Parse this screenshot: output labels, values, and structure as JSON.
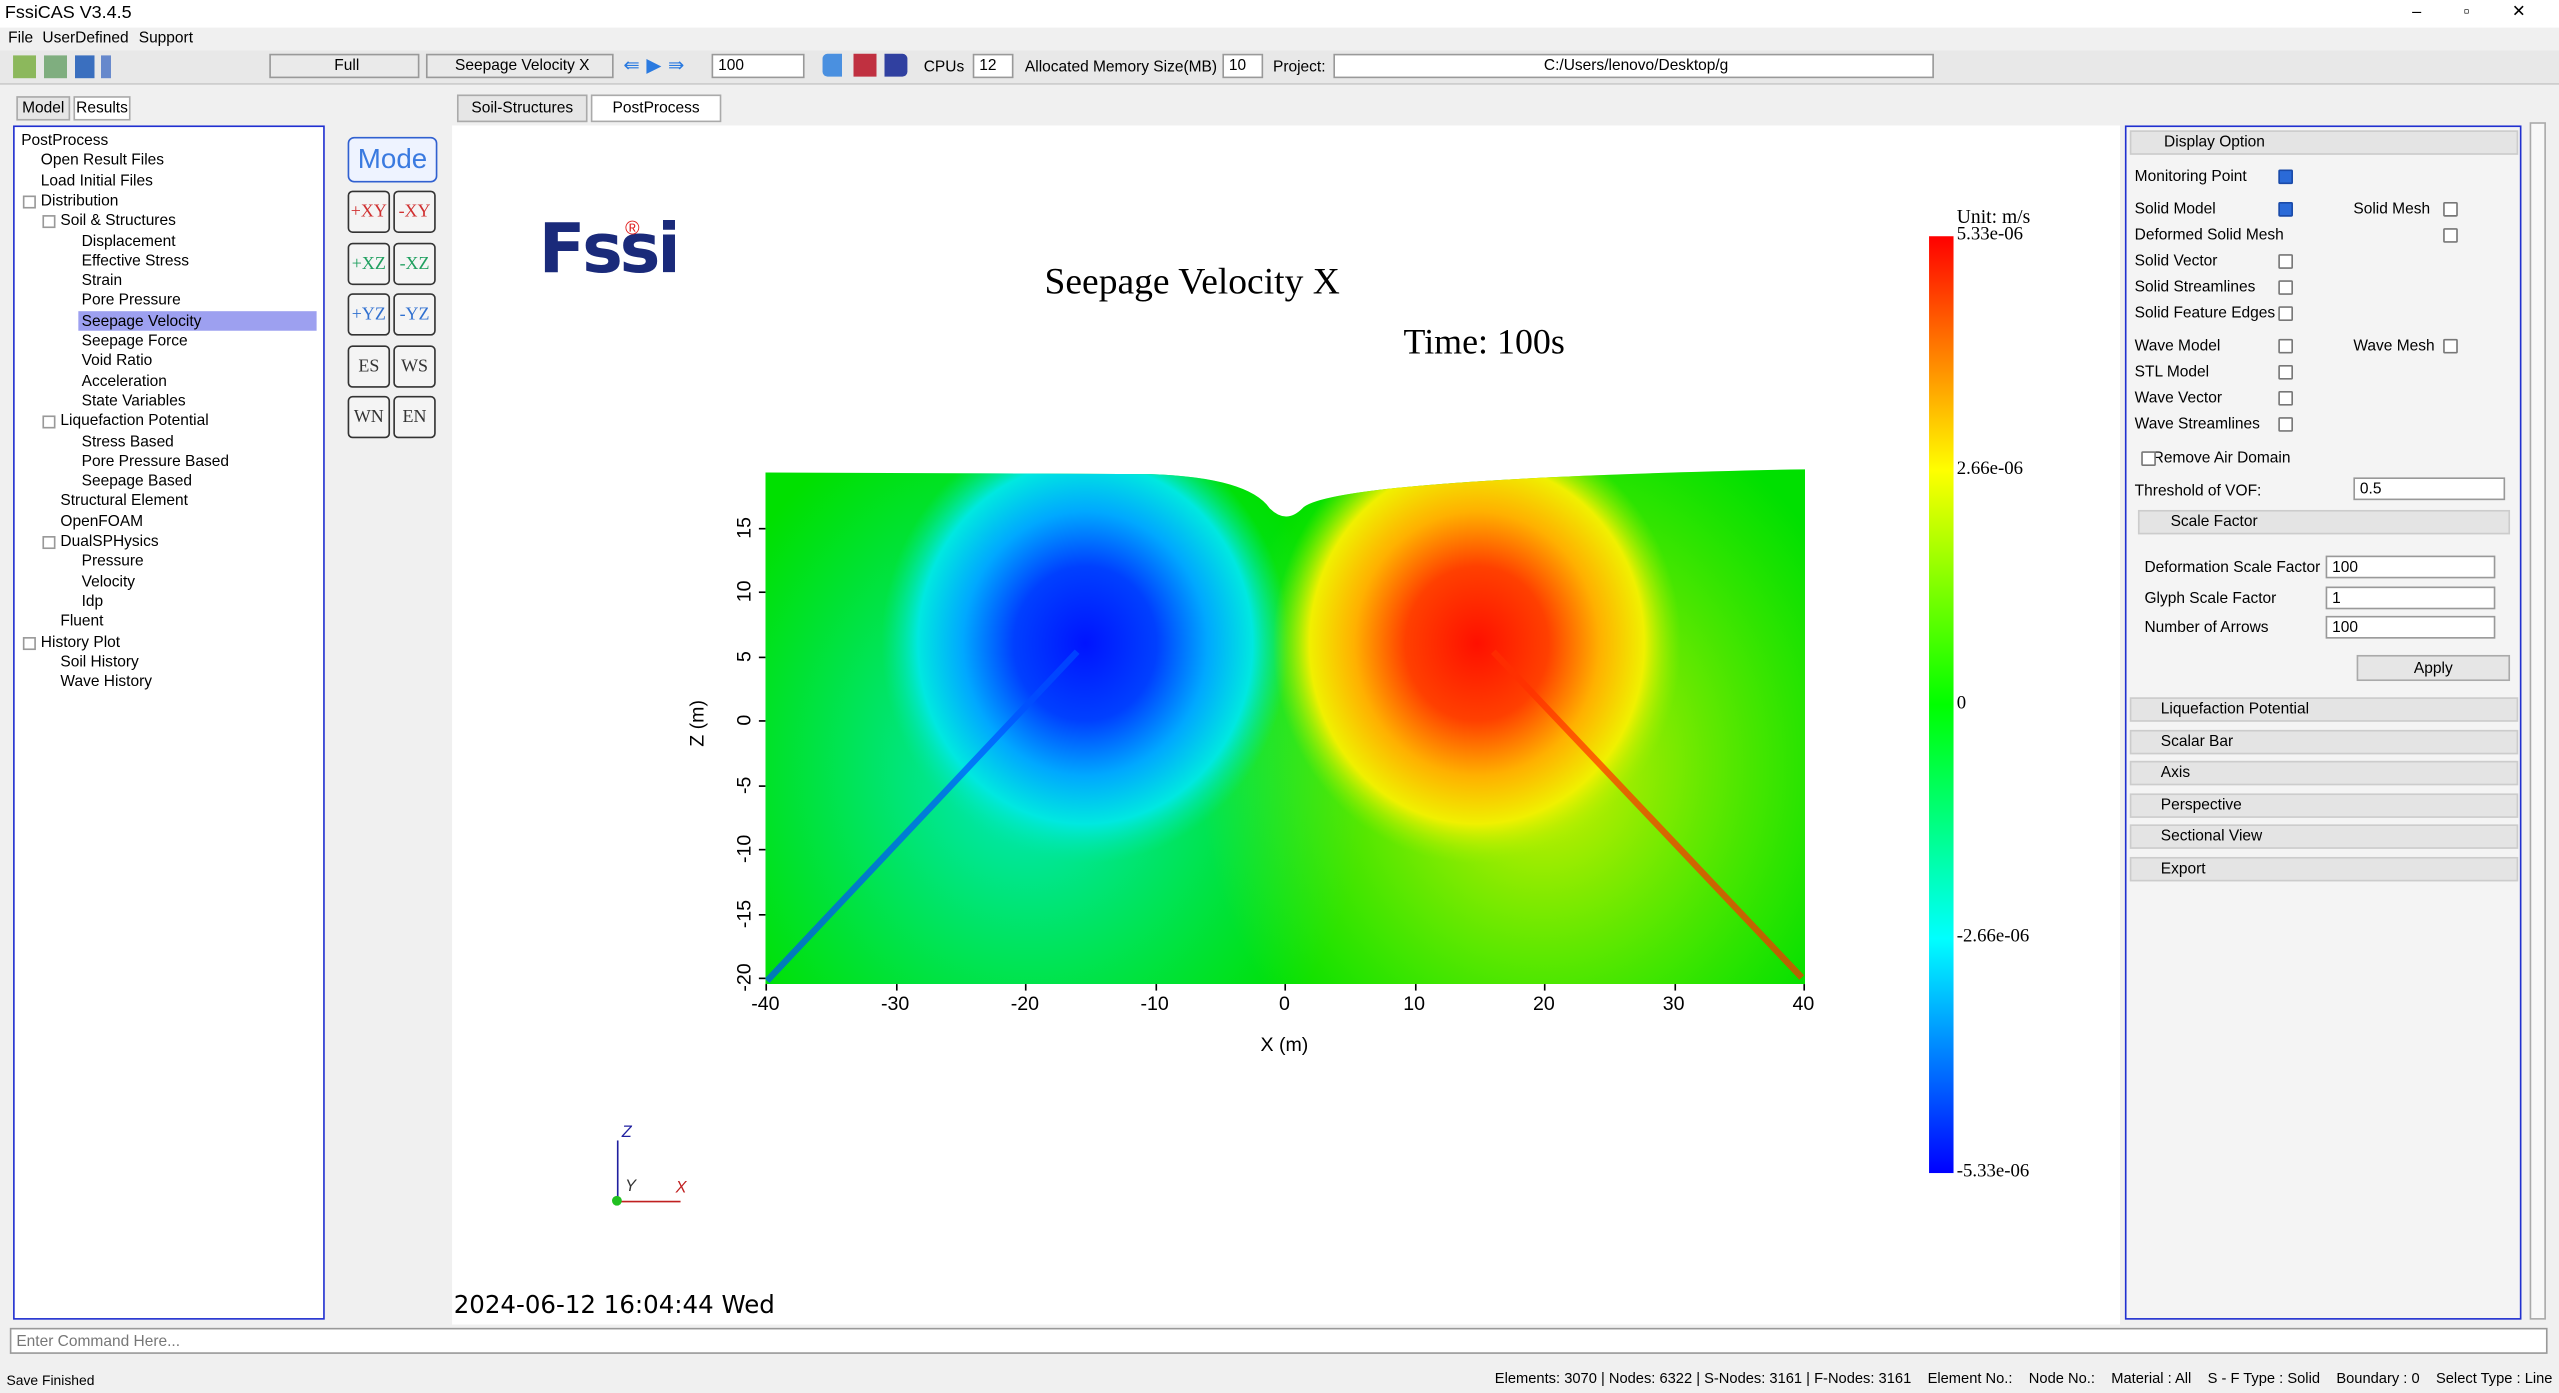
{
  "window": {
    "title": "FssiCAS V3.4.5"
  },
  "menu": [
    "File",
    "UserDefined",
    "Support"
  ],
  "toolbar": {
    "mode": "Full",
    "field": "Seepage Velocity X",
    "step": "100",
    "cpus_label": "CPUs",
    "cpus": "12",
    "memory_label": "Allocated Memory Size(MB) :",
    "memory": "10",
    "project_label": "Project:",
    "project": "C:/Users/lenovo/Desktop/g"
  },
  "left_tabs": [
    "Model",
    "Results"
  ],
  "tree": [
    {
      "label": "PostProcess",
      "level": 0
    },
    {
      "label": "Open Result Files",
      "level": 1
    },
    {
      "label": "Load Initial Files",
      "level": 1
    },
    {
      "label": "Distribution",
      "level": 1
    },
    {
      "label": "Soil & Structures",
      "level": 2
    },
    {
      "label": "Displacement",
      "level": 3
    },
    {
      "label": "Effective Stress",
      "level": 3
    },
    {
      "label": "Strain",
      "level": 3
    },
    {
      "label": "Pore Pressure",
      "level": 3
    },
    {
      "label": "Seepage Velocity",
      "level": 3,
      "selected": true
    },
    {
      "label": "Seepage Force",
      "level": 3
    },
    {
      "label": "Void Ratio",
      "level": 3
    },
    {
      "label": "Acceleration",
      "level": 3
    },
    {
      "label": "State Variables",
      "level": 3
    },
    {
      "label": "Liquefaction Potential",
      "level": 2
    },
    {
      "label": "Stress Based",
      "level": 3
    },
    {
      "label": "Pore Pressure Based",
      "level": 3
    },
    {
      "label": "Seepage Based",
      "level": 3
    },
    {
      "label": "Structural Element",
      "level": 2
    },
    {
      "label": "OpenFOAM",
      "level": 2
    },
    {
      "label": "DualSPHysics",
      "level": 2
    },
    {
      "label": "Pressure",
      "level": 3
    },
    {
      "label": "Velocity",
      "level": 3
    },
    {
      "label": "Idp",
      "level": 3
    },
    {
      "label": "Fluent",
      "level": 2
    },
    {
      "label": "History Plot",
      "level": 1
    },
    {
      "label": "Soil History",
      "level": 2
    },
    {
      "label": "Wave History",
      "level": 2
    }
  ],
  "view_tabs": [
    "Soil-Structures",
    "PostProcess"
  ],
  "view_buttons": {
    "mode": "Mode",
    "views": [
      "+XY",
      "-XY",
      "+XZ",
      "-XZ",
      "+YZ",
      "-YZ",
      "ES",
      "WS",
      "WN",
      "EN"
    ]
  },
  "plot": {
    "logo": "Fssi",
    "logo_mark": "®",
    "title": "Seepage Velocity X",
    "time": "Time: 100s",
    "xlabel": "X (m)",
    "ylabel": "Z (m)",
    "xticks": [
      "-40",
      "-30",
      "-20",
      "-10",
      "0",
      "10",
      "20",
      "30",
      "40"
    ],
    "yticks": [
      "-20",
      "-15",
      "-10",
      "-5",
      "0",
      "5",
      "10",
      "15"
    ],
    "colorbar_unit": "Unit: m/s",
    "colorbar_labels": [
      "5.33e-06",
      "2.66e-06",
      "0",
      "-2.66e-06",
      "-5.33e-06"
    ],
    "triad": [
      "Z",
      "Y",
      "X"
    ],
    "timestamp": "2024-06-12 16:04:44 Wed"
  },
  "panel": {
    "title": "Display Option",
    "options": [
      {
        "label": "Monitoring Point",
        "checked": true
      },
      {
        "label": "Solid Model",
        "checked": true
      },
      {
        "label": "Solid Mesh",
        "checked": false
      },
      {
        "label": "Deformed Solid Mesh",
        "checked": false
      },
      {
        "label": "Solid Vector",
        "checked": false
      },
      {
        "label": "Solid Streamlines",
        "checked": false
      },
      {
        "label": "Solid Feature Edges",
        "checked": false
      },
      {
        "label": "Wave Model",
        "checked": false
      },
      {
        "label": "Wave Mesh",
        "checked": false
      },
      {
        "label": "STL Model",
        "checked": false
      },
      {
        "label": "Wave Vector",
        "checked": false
      },
      {
        "label": "Wave Streamlines",
        "checked": false
      },
      {
        "label": "Remove Air Domain",
        "checked": false
      }
    ],
    "vof": {
      "label": "Threshold of VOF:",
      "value": "0.5"
    },
    "scale_factor": {
      "title": "Scale Factor",
      "fields": [
        {
          "label": "Deformation Scale Factor",
          "value": "100"
        },
        {
          "label": "Glyph Scale Factor",
          "value": "1"
        },
        {
          "label": "Number of Arrows",
          "value": "100"
        }
      ],
      "button": "Apply"
    },
    "sections": [
      "Liquefaction Potential",
      "Scalar Bar",
      "Axis",
      "Perspective",
      "Sectional View",
      "Export"
    ]
  },
  "command_placeholder": "Enter Command Here...",
  "status": {
    "message": "Save Finished",
    "items": [
      "Elements: 3070 | Nodes: 6322 | S-Nodes: 3161 | F-Nodes: 3161",
      "Element No.:",
      "Node No.:",
      "Material :  All",
      "S - F Type :  Solid",
      "Boundary :  0",
      "Select Type :  Line"
    ]
  }
}
